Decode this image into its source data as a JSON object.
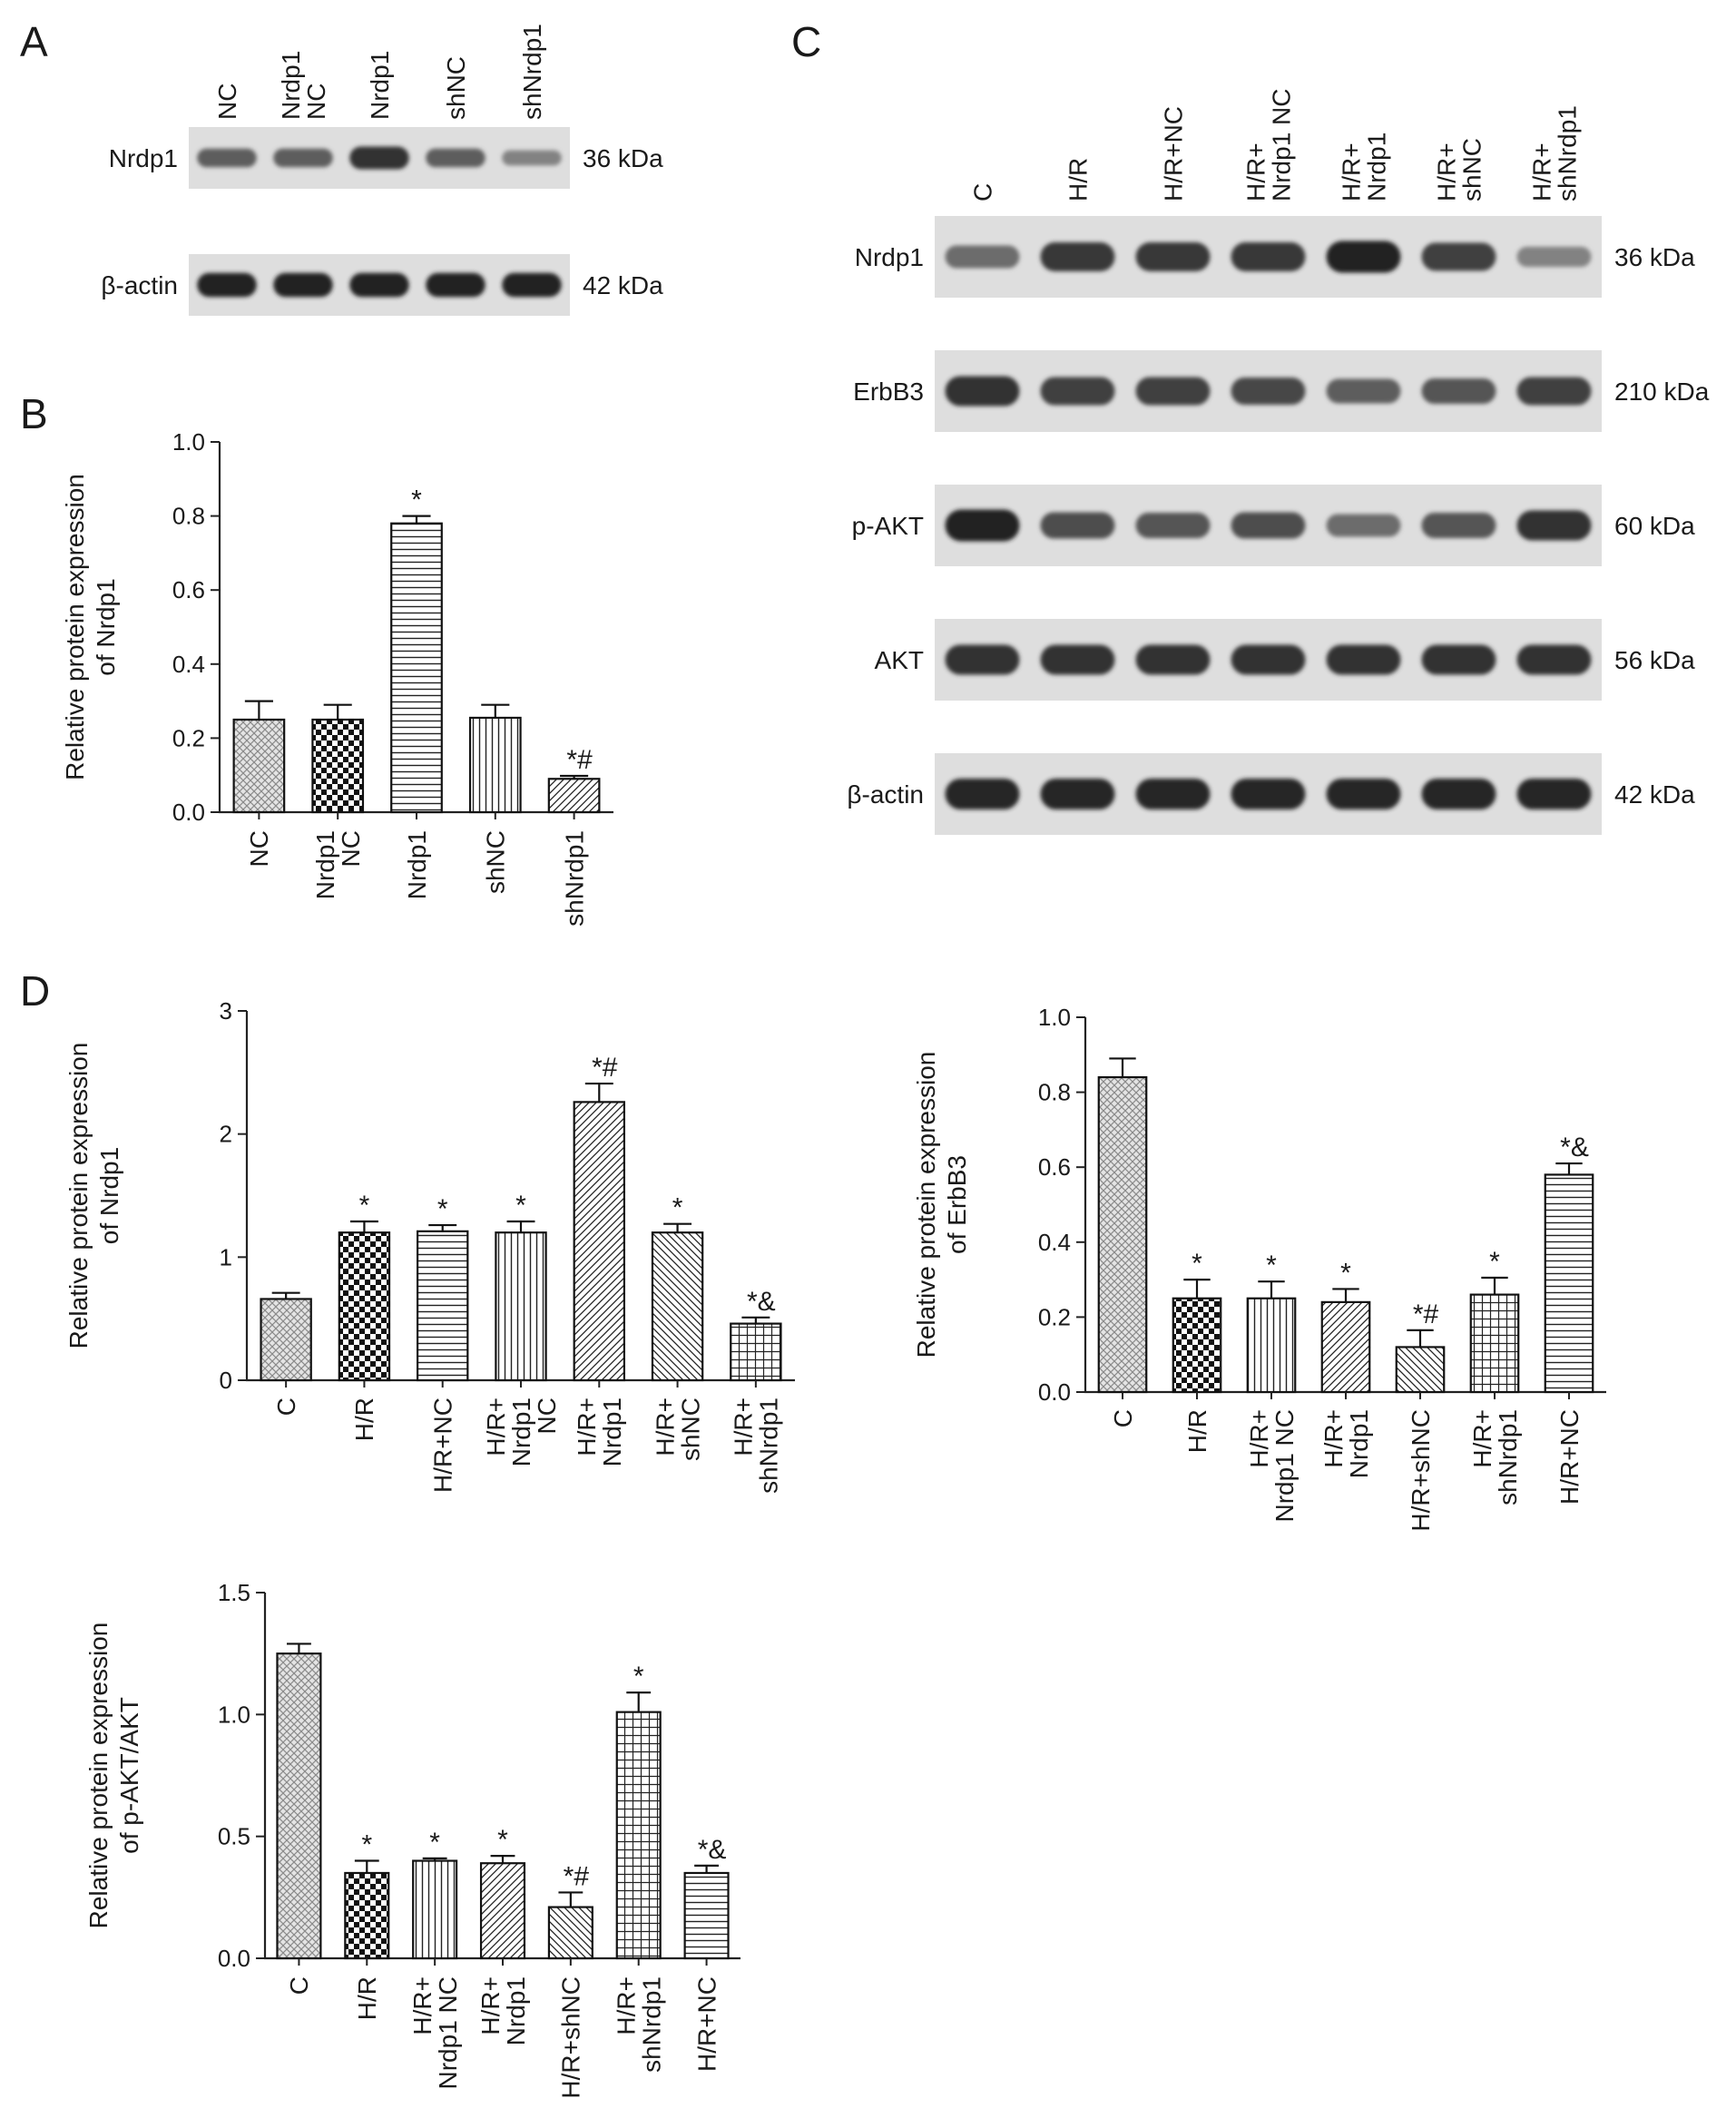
{
  "panels": {
    "A": {
      "letter": "A",
      "lanes": [
        "NC",
        "Nrdp1 NC",
        "Nrdp1",
        "shNC",
        "shNrdp1"
      ],
      "blots": [
        {
          "protein": "Nrdp1",
          "size": "36 kDa",
          "intensity": [
            0.55,
            0.55,
            0.85,
            0.55,
            0.3
          ]
        },
        {
          "protein": "β-actin",
          "size": "42 kDa",
          "intensity": [
            0.95,
            0.95,
            0.95,
            0.95,
            0.95
          ]
        }
      ]
    },
    "B": {
      "letter": "B"
    },
    "C": {
      "letter": "C",
      "lanes": [
        "C",
        "H/R",
        "H/R+NC",
        "H/R+ Nrdp1 NC",
        "H/R+ Nrdp1",
        "H/R+ shNC",
        "H/R+ shNrdp1"
      ],
      "blots": [
        {
          "protein": "Nrdp1",
          "size": "36 kDa",
          "intensity": [
            0.45,
            0.8,
            0.8,
            0.8,
            0.95,
            0.75,
            0.3
          ]
        },
        {
          "protein": "ErbB3",
          "size": "210 kDa",
          "intensity": [
            0.85,
            0.75,
            0.75,
            0.7,
            0.55,
            0.6,
            0.75
          ]
        },
        {
          "protein": "p-AKT",
          "size": "60 kDa",
          "intensity": [
            0.95,
            0.65,
            0.6,
            0.65,
            0.45,
            0.6,
            0.85
          ]
        },
        {
          "protein": "AKT",
          "size": "56 kDa",
          "intensity": [
            0.85,
            0.85,
            0.85,
            0.85,
            0.85,
            0.85,
            0.85
          ]
        },
        {
          "protein": "β-actin",
          "size": "42 kDa",
          "intensity": [
            0.9,
            0.9,
            0.9,
            0.9,
            0.9,
            0.9,
            0.9
          ]
        }
      ]
    },
    "D": {
      "letter": "D"
    }
  },
  "chart_data": [
    {
      "panel": "B",
      "type": "bar",
      "ylabel": "Relative protein expression of Nrdp1",
      "ylim": [
        0,
        1.0
      ],
      "yticks": [
        "0.0",
        "0.2",
        "0.4",
        "0.6",
        "0.8",
        "1.0"
      ],
      "categories": [
        "NC",
        "Nrdp1 NC",
        "Nrdp1",
        "shNC",
        "shNrdp1"
      ],
      "values": [
        0.25,
        0.25,
        0.78,
        0.255,
        0.09
      ],
      "errors": [
        0.05,
        0.04,
        0.02,
        0.035,
        0.008
      ],
      "annotations": [
        "",
        "",
        "*",
        "",
        "*#"
      ],
      "patterns": [
        "cross",
        "check",
        "hline",
        "vline",
        "diag"
      ]
    },
    {
      "panel": "D1",
      "type": "bar",
      "ylabel": "Relative protein expression of Nrdp1",
      "ylim": [
        0,
        3
      ],
      "yticks": [
        "0",
        "1",
        "2",
        "3"
      ],
      "categories": [
        "C",
        "H/R",
        "H/R+NC",
        "H/R+ Nrdp1 NC",
        "H/R+ Nrdp1",
        "H/R+ shNC",
        "H/R+ shNrdp1"
      ],
      "values": [
        0.66,
        1.2,
        1.21,
        1.2,
        2.26,
        1.2,
        0.46
      ],
      "errors": [
        0.05,
        0.09,
        0.05,
        0.09,
        0.15,
        0.07,
        0.05
      ],
      "annotations": [
        "",
        "*",
        "*",
        "*",
        "*#",
        "*",
        "*&"
      ],
      "patterns": [
        "cross",
        "check",
        "hline",
        "vline",
        "diag",
        "diagrev",
        "grid"
      ]
    },
    {
      "panel": "D2",
      "type": "bar",
      "ylabel": "Relative protein expression of ErbB3",
      "ylim": [
        0,
        1.0
      ],
      "yticks": [
        "0.0",
        "0.2",
        "0.4",
        "0.6",
        "0.8",
        "1.0"
      ],
      "categories": [
        "C",
        "H/R",
        "H/R+ Nrdp1 NC",
        "H/R+ Nrdp1",
        "H/R+shNC",
        "H/R+ shNrdp1",
        "H/R+NC"
      ],
      "values": [
        0.84,
        0.25,
        0.25,
        0.24,
        0.12,
        0.26,
        0.58
      ],
      "errors": [
        0.05,
        0.05,
        0.045,
        0.035,
        0.045,
        0.045,
        0.03
      ],
      "annotations": [
        "",
        "*",
        "*",
        "*",
        "*#",
        "*",
        "*&"
      ],
      "patterns": [
        "cross",
        "check",
        "vline",
        "diag",
        "diagrev",
        "grid",
        "hline"
      ]
    },
    {
      "panel": "D3",
      "type": "bar",
      "ylabel": "Relative protein expression of p-AKT/AKT",
      "ylim": [
        0,
        1.5
      ],
      "yticks": [
        "0.0",
        "0.5",
        "1.0",
        "1.5"
      ],
      "categories": [
        "C",
        "H/R",
        "H/R+ Nrdp1 NC",
        "H/R+ Nrdp1",
        "H/R+shNC",
        "H/R+ shNrdp1",
        "H/R+NC"
      ],
      "values": [
        1.25,
        0.35,
        0.4,
        0.39,
        0.21,
        1.01,
        0.35
      ],
      "errors": [
        0.04,
        0.05,
        0.01,
        0.03,
        0.06,
        0.08,
        0.03
      ],
      "annotations": [
        "",
        "*",
        "*",
        "*",
        "*#",
        "*",
        "*&"
      ],
      "patterns": [
        "cross",
        "check",
        "vline",
        "diag",
        "diagrev",
        "grid",
        "hline"
      ]
    }
  ]
}
